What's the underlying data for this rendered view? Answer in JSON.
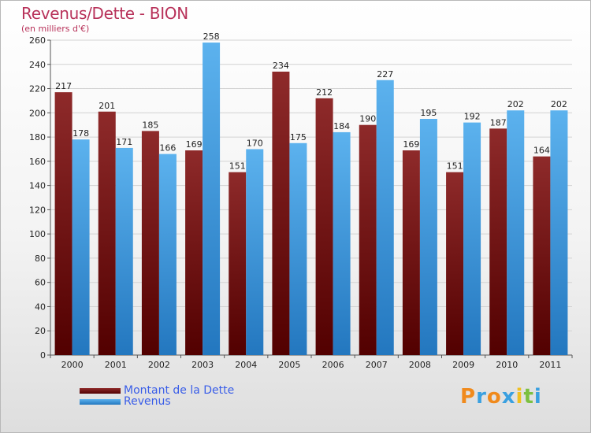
{
  "chart_data": {
    "type": "bar",
    "title": "Revenus/Dette - BION",
    "subtitle": "(en milliers d'€)",
    "categories": [
      "2000",
      "2001",
      "2002",
      "2003",
      "2004",
      "2005",
      "2006",
      "2007",
      "2008",
      "2009",
      "2010",
      "2011"
    ],
    "series": [
      {
        "name": "Montant de la Dette",
        "values": [
          217,
          201,
          185,
          169,
          151,
          234,
          212,
          190,
          169,
          151,
          187,
          164
        ],
        "color": "#7a1c1c"
      },
      {
        "name": "Revenus",
        "values": [
          178,
          171,
          166,
          258,
          170,
          175,
          184,
          227,
          195,
          192,
          202,
          202
        ],
        "color": "#4aa3e6"
      }
    ],
    "ylim": [
      0,
      260
    ],
    "yticks": [
      0,
      20,
      40,
      60,
      80,
      100,
      120,
      140,
      160,
      180,
      200,
      220,
      240,
      260
    ],
    "grid": true,
    "legend_position": "bottom-left"
  },
  "logo": {
    "letters": [
      "P",
      "r",
      "o",
      "x",
      "i",
      "t",
      "i"
    ],
    "colors": [
      "#f08a1c",
      "#3aa0e0",
      "#f08a1c",
      "#3aa0e0",
      "#f0c020",
      "#7cc040",
      "#3aa0e0"
    ]
  }
}
